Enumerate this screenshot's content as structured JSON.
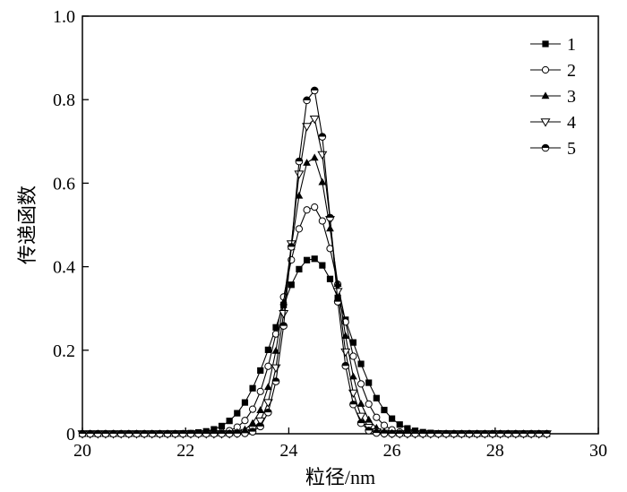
{
  "chart_data": {
    "type": "line",
    "xlabel": "粒径/nm",
    "ylabel": "传递函数",
    "xlim": [
      20,
      30
    ],
    "ylim": [
      0,
      1.0
    ],
    "x_ticks": [
      20,
      22,
      24,
      26,
      28,
      30
    ],
    "y_ticks": [
      0,
      0.2,
      0.4,
      0.6,
      0.8,
      1.0
    ],
    "x_tick_labels": [
      "20",
      "22",
      "24",
      "26",
      "28",
      "30"
    ],
    "y_tick_labels": [
      "0",
      "0.2",
      "0.4",
      "0.6",
      "0.8",
      "1.0"
    ],
    "grid": false,
    "legend_position": "top-right",
    "x_range": [
      20,
      29
    ],
    "x_step": 0.15,
    "peak_x": 24.45,
    "series": [
      {
        "name": "1",
        "marker": "square",
        "peak": 0.42,
        "sigma": 0.7
      },
      {
        "name": "2",
        "marker": "circle-open",
        "peak": 0.545,
        "sigma": 0.545
      },
      {
        "name": "3",
        "marker": "triangle-up",
        "peak": 0.665,
        "sigma": 0.45
      },
      {
        "name": "4",
        "marker": "triangle-down-open",
        "peak": 0.76,
        "sigma": 0.395
      },
      {
        "name": "5",
        "marker": "circle-half",
        "peak": 0.83,
        "sigma": 0.36
      }
    ]
  }
}
